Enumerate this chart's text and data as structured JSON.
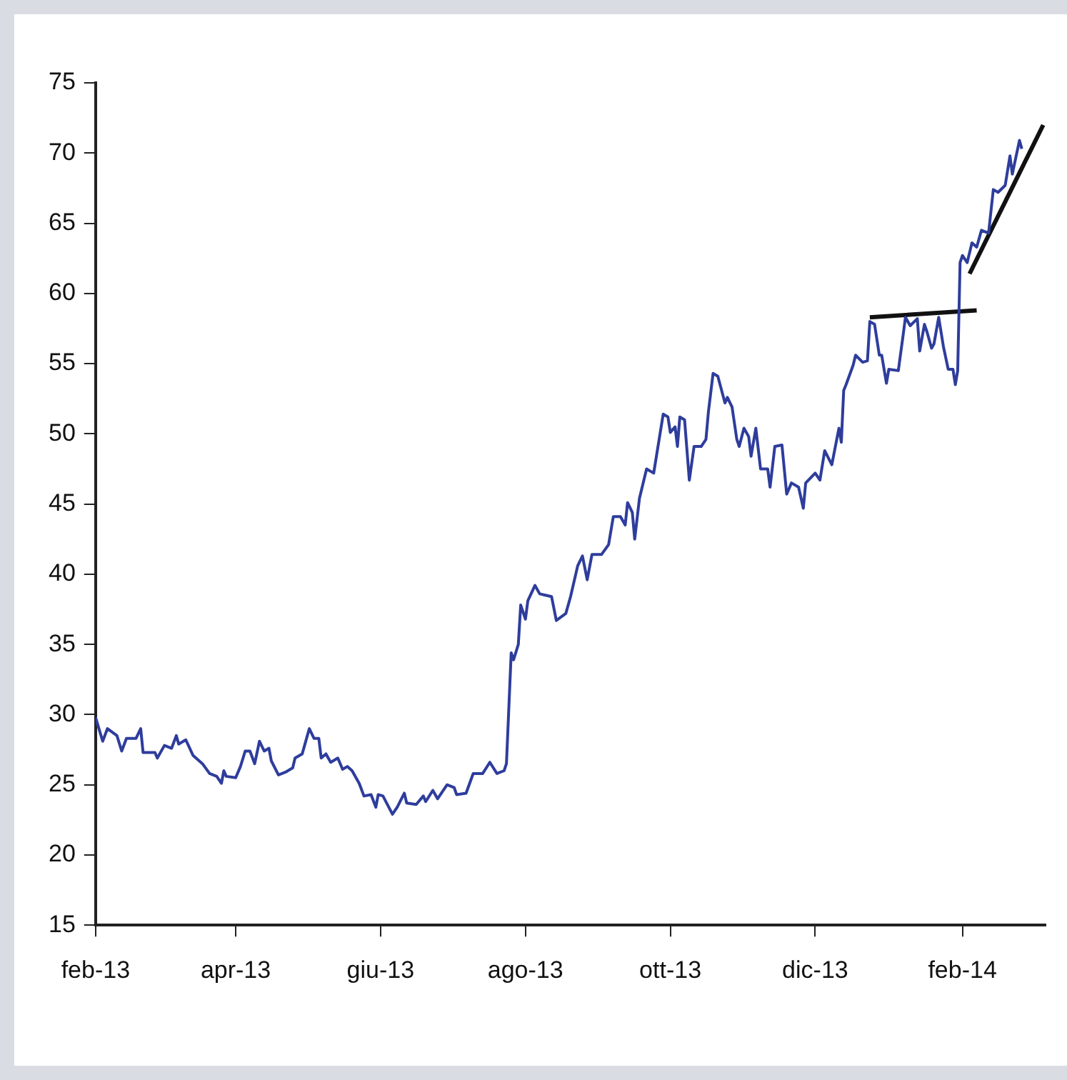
{
  "chart_data": {
    "type": "line",
    "xlim": [
      "2013-02-01",
      "2014-03-08"
    ],
    "xticks": [
      {
        "value": "2013-02-01",
        "label": "feb-13"
      },
      {
        "value": "2013-04-01",
        "label": "apr-13"
      },
      {
        "value": "2013-06-01",
        "label": "giu-13"
      },
      {
        "value": "2013-08-01",
        "label": "ago-13"
      },
      {
        "value": "2013-10-01",
        "label": "ott-13"
      },
      {
        "value": "2013-12-01",
        "label": "dic-13"
      },
      {
        "value": "2014-02-01",
        "label": "feb-14"
      }
    ],
    "ylim": [
      15,
      75
    ],
    "yticks": [
      15,
      20,
      25,
      30,
      35,
      40,
      45,
      50,
      55,
      60,
      65,
      70,
      75
    ],
    "grid": false,
    "legend": false,
    "marker": "none",
    "line_style": "solid",
    "series": [
      {
        "type": "line",
        "color": "#2e3d9c",
        "x": [
          "2013-02-01",
          "2013-02-04",
          "2013-02-06",
          "2013-02-10",
          "2013-02-12",
          "2013-02-14",
          "2013-02-18",
          "2013-02-20",
          "2013-02-21",
          "2013-02-26",
          "2013-02-27",
          "2013-03-02",
          "2013-03-05",
          "2013-03-07",
          "2013-03-08",
          "2013-03-11",
          "2013-03-14",
          "2013-03-18",
          "2013-03-21",
          "2013-03-24",
          "2013-03-26",
          "2013-03-27",
          "2013-03-28",
          "2013-04-01",
          "2013-04-03",
          "2013-04-05",
          "2013-04-07",
          "2013-04-09",
          "2013-04-11",
          "2013-04-13",
          "2013-04-15",
          "2013-04-16",
          "2013-04-19",
          "2013-04-22",
          "2013-04-25",
          "2013-04-26",
          "2013-04-29",
          "2013-04-30",
          "2013-05-02",
          "2013-05-04",
          "2013-05-06",
          "2013-05-07",
          "2013-05-09",
          "2013-05-11",
          "2013-05-14",
          "2013-05-16",
          "2013-05-18",
          "2013-05-20",
          "2013-05-23",
          "2013-05-25",
          "2013-05-28",
          "2013-05-30",
          "2013-05-31",
          "2013-06-02",
          "2013-06-06",
          "2013-06-08",
          "2013-06-11",
          "2013-06-12",
          "2013-06-16",
          "2013-06-19",
          "2013-06-20",
          "2013-06-23",
          "2013-06-25",
          "2013-06-29",
          "2013-07-02",
          "2013-07-03",
          "2013-07-07",
          "2013-07-10",
          "2013-07-14",
          "2013-07-17",
          "2013-07-20",
          "2013-07-23",
          "2013-07-24",
          "2013-07-26",
          "2013-07-27",
          "2013-07-29",
          "2013-07-30",
          "2013-08-01",
          "2013-08-02",
          "2013-08-05",
          "2013-08-07",
          "2013-08-12",
          "2013-08-14",
          "2013-08-18",
          "2013-08-20",
          "2013-08-23",
          "2013-08-25",
          "2013-08-27",
          "2013-08-29",
          "2013-09-02",
          "2013-09-05",
          "2013-09-07",
          "2013-09-10",
          "2013-09-12",
          "2013-09-13",
          "2013-09-15",
          "2013-09-16",
          "2013-09-18",
          "2013-09-21",
          "2013-09-24",
          "2013-09-28",
          "2013-09-30",
          "2013-10-01",
          "2013-10-03",
          "2013-10-04",
          "2013-10-05",
          "2013-10-07",
          "2013-10-09",
          "2013-10-11",
          "2013-10-14",
          "2013-10-16",
          "2013-10-17",
          "2013-10-19",
          "2013-10-21",
          "2013-10-24",
          "2013-10-25",
          "2013-10-27",
          "2013-10-29",
          "2013-10-30",
          "2013-11-01",
          "2013-11-03",
          "2013-11-04",
          "2013-11-06",
          "2013-11-08",
          "2013-11-11",
          "2013-11-12",
          "2013-11-14",
          "2013-11-17",
          "2013-11-19",
          "2013-11-21",
          "2013-11-24",
          "2013-11-26",
          "2013-11-27",
          "2013-12-01",
          "2013-12-03",
          "2013-12-05",
          "2013-12-08",
          "2013-12-11",
          "2013-12-12",
          "2013-12-13",
          "2013-12-14",
          "2013-12-17",
          "2013-12-18",
          "2013-12-21",
          "2013-12-23",
          "2013-12-24",
          "2013-12-26",
          "2013-12-28",
          "2013-12-29",
          "2013-12-31",
          "2014-01-01",
          "2014-01-05",
          "2014-01-07",
          "2014-01-08",
          "2014-01-10",
          "2014-01-13",
          "2014-01-14",
          "2014-01-16",
          "2014-01-17",
          "2014-01-19",
          "2014-01-20",
          "2014-01-22",
          "2014-01-24",
          "2014-01-26",
          "2014-01-28",
          "2014-01-29",
          "2014-01-30",
          "2014-01-31",
          "2014-02-01",
          "2014-02-03",
          "2014-02-05",
          "2014-02-07",
          "2014-02-09",
          "2014-02-12",
          "2014-02-14",
          "2014-02-16",
          "2014-02-19",
          "2014-02-21",
          "2014-02-22",
          "2014-02-25",
          "2014-02-26"
        ],
        "values": [
          29.8,
          28.1,
          29.0,
          28.5,
          27.4,
          28.3,
          28.3,
          29.0,
          27.3,
          27.3,
          26.9,
          27.8,
          27.6,
          28.5,
          27.9,
          28.2,
          27.1,
          26.5,
          25.8,
          25.6,
          25.1,
          26.0,
          25.6,
          25.5,
          26.3,
          27.4,
          27.4,
          26.5,
          28.1,
          27.4,
          27.6,
          26.7,
          25.7,
          25.9,
          26.2,
          26.9,
          27.2,
          27.8,
          29.0,
          28.3,
          28.3,
          26.9,
          27.2,
          26.6,
          26.9,
          26.1,
          26.3,
          26.0,
          25.1,
          24.2,
          24.3,
          23.4,
          24.3,
          24.2,
          22.9,
          23.4,
          24.4,
          23.7,
          23.6,
          24.2,
          23.8,
          24.6,
          24.0,
          25.0,
          24.8,
          24.3,
          24.4,
          25.8,
          25.8,
          26.6,
          25.8,
          26.0,
          26.5,
          34.4,
          33.9,
          35.0,
          37.8,
          36.8,
          38.1,
          39.2,
          38.6,
          38.4,
          36.7,
          37.2,
          38.4,
          40.6,
          41.3,
          39.6,
          41.4,
          41.4,
          42.1,
          44.1,
          44.1,
          43.5,
          45.1,
          44.4,
          42.5,
          45.4,
          47.5,
          47.2,
          51.4,
          51.2,
          50.1,
          50.5,
          49.1,
          51.2,
          51.0,
          46.7,
          49.1,
          49.1,
          49.6,
          51.5,
          54.3,
          54.1,
          52.2,
          52.6,
          51.9,
          49.6,
          49.1,
          50.4,
          49.8,
          48.4,
          50.4,
          47.5,
          47.5,
          46.2,
          49.1,
          49.2,
          45.7,
          46.5,
          46.2,
          44.7,
          46.5,
          47.2,
          46.7,
          48.8,
          47.8,
          50.4,
          49.4,
          53.1,
          53.5,
          54.9,
          55.6,
          55.1,
          55.2,
          58.0,
          57.8,
          55.6,
          55.6,
          53.6,
          54.6,
          54.5,
          57.0,
          58.3,
          57.7,
          58.2,
          55.9,
          57.8,
          57.3,
          56.1,
          56.4,
          58.3,
          56.2,
          54.6,
          54.6,
          53.5,
          54.5,
          62.2,
          62.7,
          62.2,
          63.6,
          63.3,
          64.5,
          64.3,
          67.4,
          67.2,
          67.7,
          69.8,
          68.5,
          70.9,
          70.3
        ]
      },
      {
        "type": "line",
        "color": "#111111",
        "x": [
          "2013-12-24",
          "2014-02-07"
        ],
        "values": [
          58.3,
          58.8
        ]
      },
      {
        "type": "line",
        "color": "#111111",
        "x": [
          "2014-02-04",
          "2014-03-07"
        ],
        "values": [
          61.4,
          72.0
        ]
      }
    ]
  }
}
